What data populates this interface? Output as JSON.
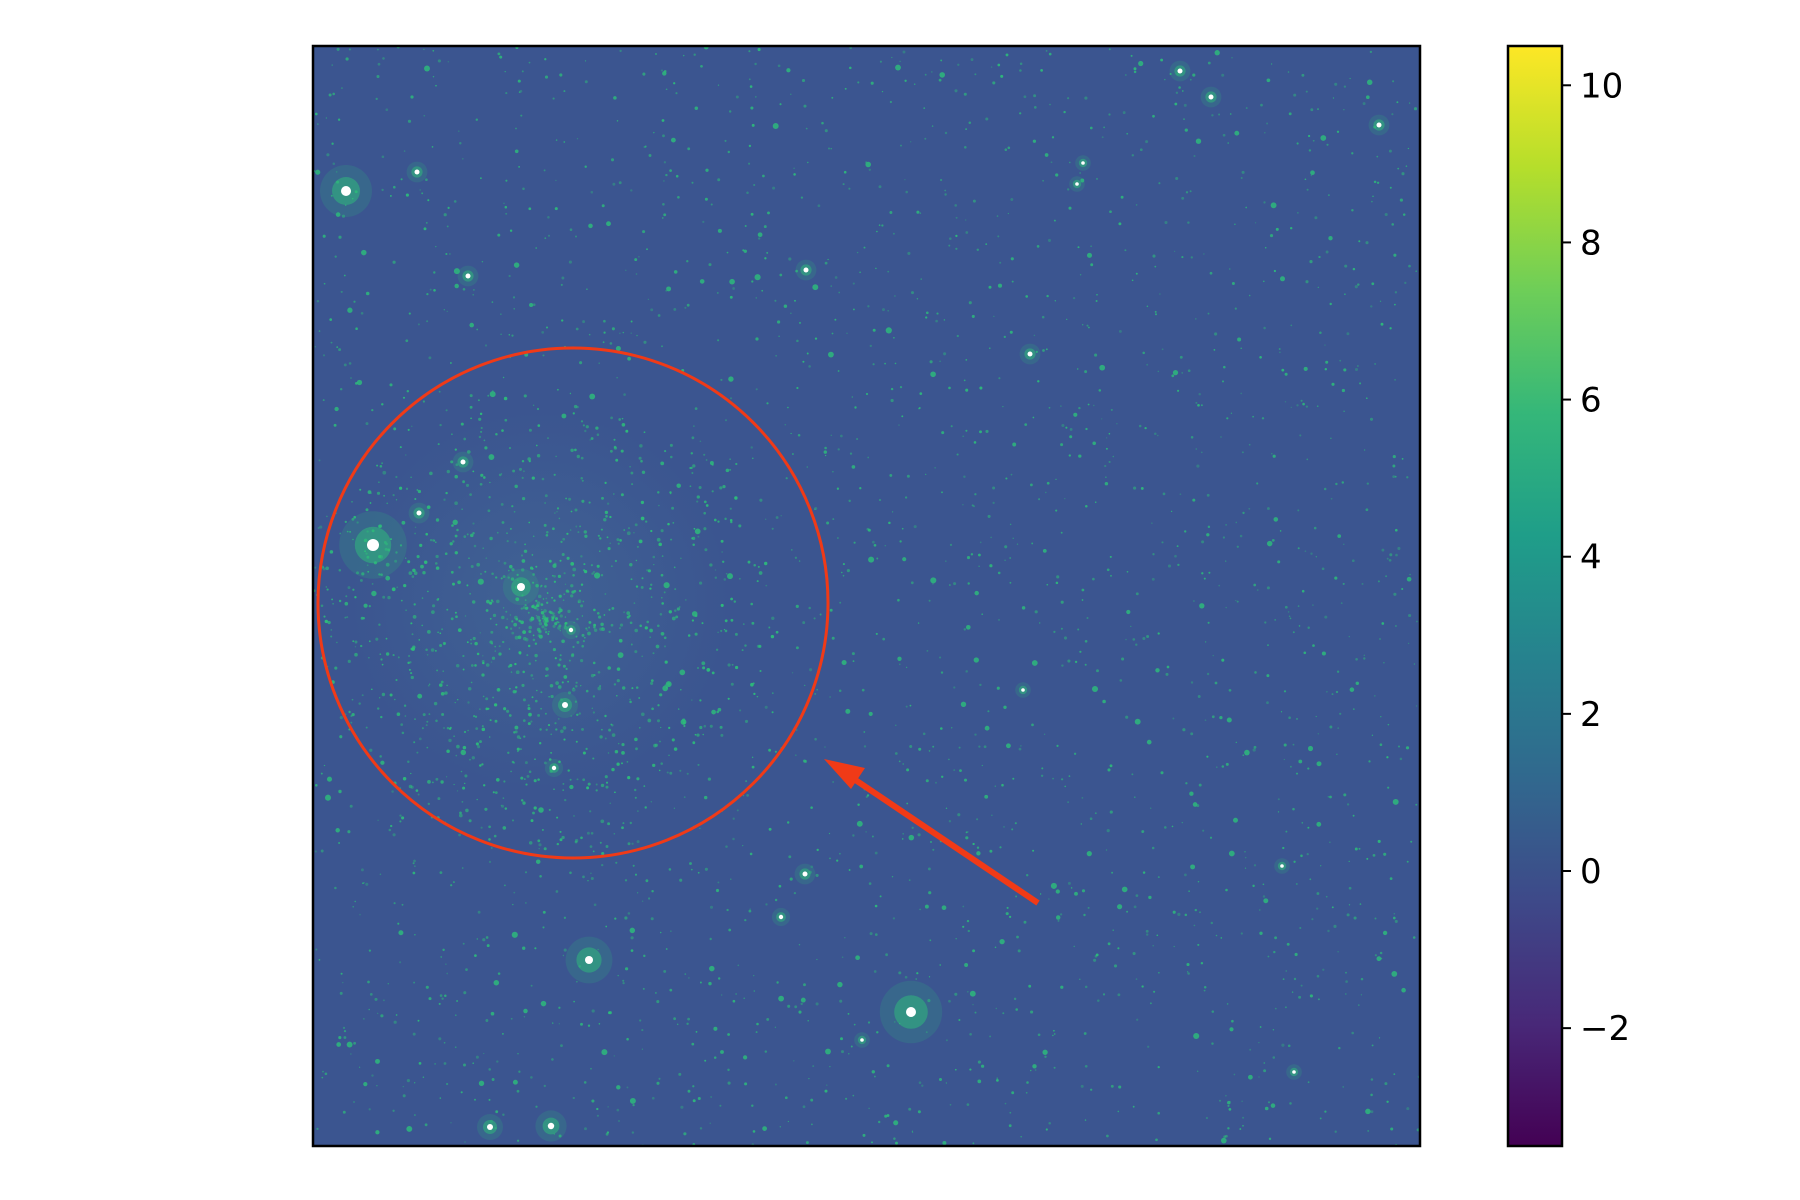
{
  "image": {
    "subject": "star-field",
    "colormap": "viridis",
    "background_color": "#3b5590",
    "star_color": "#2dbf7a",
    "saturated_star_color": "#ffffff",
    "frame_color": "#000000"
  },
  "annotations": {
    "circle": {
      "shape": "circle",
      "color": "#f03a17",
      "marks": "star-cluster"
    },
    "arrow": {
      "shape": "arrow",
      "color": "#f03a17",
      "points_to": "circle"
    }
  },
  "colorbar": {
    "min": -3.5,
    "max": 10.5,
    "ticks": [
      {
        "value": 10,
        "label": "10"
      },
      {
        "value": 8,
        "label": "8"
      },
      {
        "value": 6,
        "label": "6"
      },
      {
        "value": 4,
        "label": "4"
      },
      {
        "value": 2,
        "label": "2"
      },
      {
        "value": 0,
        "label": "0"
      },
      {
        "value": -2,
        "label": "−2"
      }
    ],
    "stops": [
      "#440154",
      "#482878",
      "#3e4989",
      "#31688e",
      "#26828e",
      "#1f9e89",
      "#35b779",
      "#6ece58",
      "#b5de2b",
      "#fde725"
    ]
  }
}
